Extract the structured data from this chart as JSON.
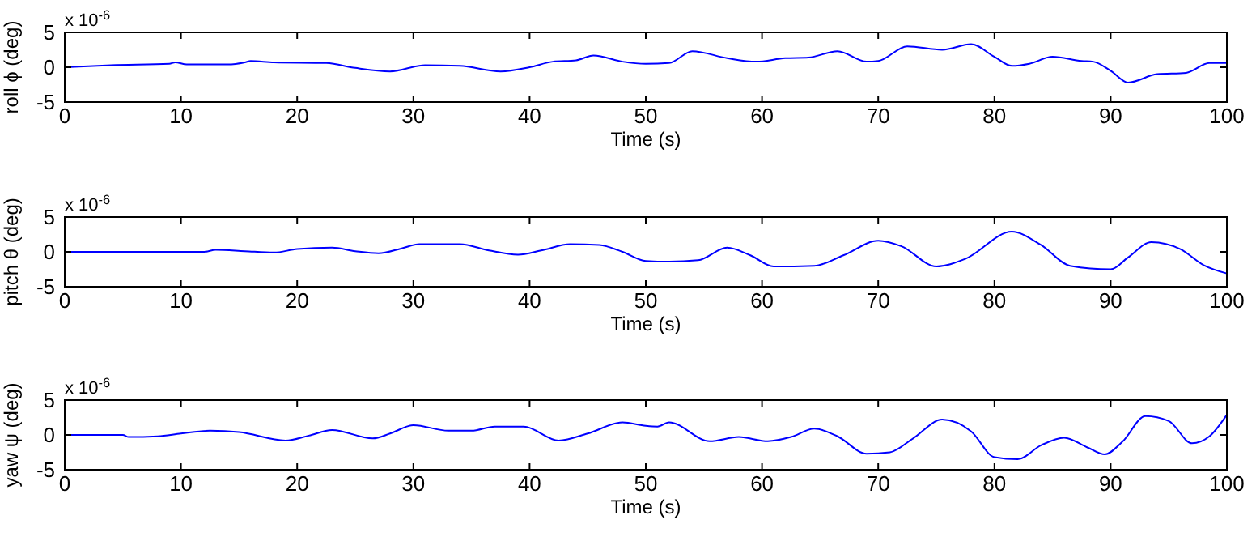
{
  "chart_data": [
    {
      "type": "line",
      "xlabel": "Time (s)",
      "ylabel": "roll ϕ (deg)",
      "annotations": [
        "x 10$^{-6}$"
      ],
      "xlim": [
        0,
        100
      ],
      "ylim": [
        -5,
        5
      ],
      "xticks": [
        0,
        10,
        20,
        30,
        40,
        50,
        60,
        70,
        80,
        90,
        100
      ],
      "yticks": [
        -5,
        0,
        5
      ],
      "x": [
        0,
        4,
        9,
        9.5,
        10.5,
        14,
        15.5,
        16,
        18,
        22.5,
        25,
        28,
        31,
        34,
        37.5,
        40,
        42,
        44,
        45.5,
        48,
        50,
        52,
        54,
        57,
        59.5,
        62,
        64,
        66.5,
        69,
        70,
        72.5,
        75.5,
        78,
        80,
        81.5,
        83,
        85,
        87.5,
        88.5,
        90,
        91.5,
        94,
        96.5,
        98.5,
        100
      ],
      "series": [
        {
          "color": "#0000ff",
          "values": [
            0,
            0.3,
            0.5,
            0.7,
            0.4,
            0.4,
            0.7,
            0.9,
            0.7,
            0.6,
            -0.1,
            -0.6,
            0.3,
            0.2,
            -0.6,
            0,
            0.8,
            1.0,
            1.7,
            0.8,
            0.5,
            0.6,
            2.3,
            1.3,
            0.8,
            1.3,
            1.4,
            2.3,
            0.8,
            0.9,
            3.0,
            2.5,
            3.3,
            1.5,
            0.2,
            0.5,
            1.5,
            0.9,
            0.8,
            -0.5,
            -2.2,
            -1.0,
            -0.8,
            0.6,
            0.6
          ]
        }
      ]
    },
    {
      "type": "line",
      "xlabel": "Time (s)",
      "ylabel": "pitch θ (deg)",
      "annotations": [
        "x 10$^{-6}$"
      ],
      "xlim": [
        0,
        100
      ],
      "ylim": [
        -5,
        5
      ],
      "xticks": [
        0,
        10,
        20,
        30,
        40,
        50,
        60,
        70,
        80,
        90,
        100
      ],
      "yticks": [
        -5,
        0,
        5
      ],
      "x": [
        0,
        12,
        13,
        15.5,
        18,
        20,
        23,
        25,
        27,
        29,
        30.5,
        34,
        36.5,
        39,
        41,
        43.5,
        46,
        48,
        50,
        52,
        54.5,
        57,
        59,
        61,
        64.5,
        67,
        70,
        72,
        75,
        77.5,
        81.5,
        84,
        86.5,
        90,
        91.5,
        93.5,
        96,
        98,
        100
      ],
      "series": [
        {
          "color": "#0000ff",
          "values": [
            0,
            0,
            0.3,
            0.1,
            -0.1,
            0.4,
            0.6,
            0.1,
            -0.2,
            0.5,
            1.1,
            1.1,
            0.2,
            -0.4,
            0.2,
            1.1,
            1.0,
            0,
            -1.3,
            -1.4,
            -1.2,
            0.6,
            -0.5,
            -2.1,
            -2.0,
            -0.5,
            1.6,
            0.8,
            -2.1,
            -1.0,
            2.9,
            1.0,
            -2.0,
            -2.5,
            -0.8,
            1.4,
            0.4,
            -1.9,
            -3.1
          ]
        }
      ]
    },
    {
      "type": "line",
      "xlabel": "Time (s)",
      "ylabel": "yaw ψ (deg)",
      "annotations": [
        "x 10$^{-6}$"
      ],
      "xlim": [
        0,
        100
      ],
      "ylim": [
        -5,
        5
      ],
      "xticks": [
        0,
        10,
        20,
        30,
        40,
        50,
        60,
        70,
        80,
        90,
        100
      ],
      "yticks": [
        -5,
        0,
        5
      ],
      "x": [
        0,
        5,
        5.5,
        8,
        10,
        12.5,
        15,
        19,
        21,
        23,
        26.5,
        28,
        30,
        33,
        35,
        37,
        39.5,
        42.5,
        45,
        48,
        50,
        51,
        52,
        55.5,
        58,
        60.5,
        62.5,
        64.5,
        66.5,
        69,
        71,
        73,
        75.5,
        78,
        80,
        82,
        84,
        86,
        88,
        89.5,
        91,
        93,
        95,
        97,
        98.5,
        100
      ],
      "series": [
        {
          "color": "#0000ff",
          "values": [
            0,
            0,
            -0.3,
            -0.2,
            0.2,
            0.6,
            0.4,
            -0.8,
            -0.1,
            0.7,
            -0.5,
            0.2,
            1.4,
            0.6,
            0.6,
            1.2,
            1.2,
            -0.8,
            0.2,
            1.8,
            1.3,
            1.2,
            1.8,
            -0.9,
            -0.3,
            -0.9,
            -0.3,
            0.9,
            -0.2,
            -2.7,
            -2.5,
            -0.5,
            2.2,
            0.5,
            -3.2,
            -3.5,
            -1.5,
            -0.4,
            -1.8,
            -2.8,
            -1.0,
            2.7,
            2.0,
            -1.2,
            -0.2,
            2.9
          ]
        }
      ]
    }
  ]
}
